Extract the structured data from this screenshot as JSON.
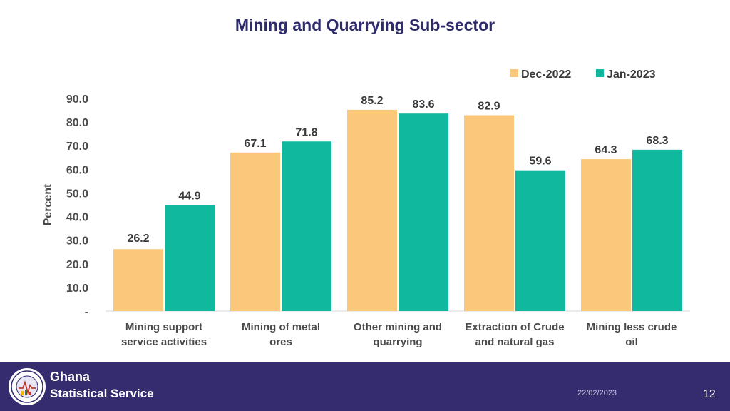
{
  "slide_title": "Mining and Quarrying Sub-sector",
  "footer": {
    "org_line1": "Ghana",
    "org_line2": "Statistical Service",
    "logo_ring_text": "GHANA STATISTICAL SERVICE",
    "date": "22/02/2023",
    "page_number": "12"
  },
  "chart_data": {
    "type": "bar",
    "title": "",
    "xlabel": "",
    "ylabel": "Percent",
    "ylim": [
      0,
      90
    ],
    "y_ticks": [
      "-",
      "10.0",
      "20.0",
      "30.0",
      "40.0",
      "50.0",
      "60.0",
      "70.0",
      "80.0",
      "90.0"
    ],
    "categories": [
      [
        "Mining support",
        "service activities"
      ],
      [
        "Mining of metal",
        "ores"
      ],
      [
        "Other mining and",
        "quarrying"
      ],
      [
        "Extraction of Crude",
        "and natural gas"
      ],
      [
        "Mining less crude",
        "oil"
      ]
    ],
    "series": [
      {
        "name": "Dec-2022",
        "color": "#fbc77a",
        "values": [
          26.2,
          67.1,
          85.2,
          82.9,
          64.3
        ],
        "labels": [
          "26.2",
          "67.1",
          "85.2",
          "82.9",
          "64.3"
        ]
      },
      {
        "name": "Jan-2023",
        "color": "#10b99d",
        "values": [
          44.9,
          71.8,
          83.6,
          59.6,
          68.3
        ],
        "labels": [
          "44.9",
          "71.8",
          "83.6",
          "59.6",
          "68.3"
        ]
      }
    ],
    "legend_position": "top-right",
    "grid": false
  }
}
